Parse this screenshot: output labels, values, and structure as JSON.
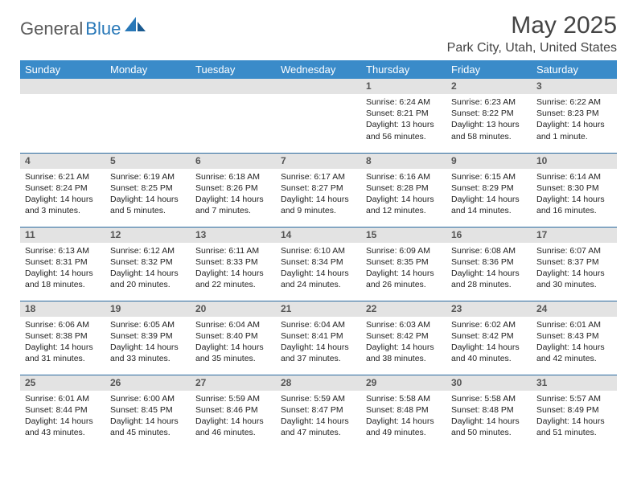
{
  "logo": {
    "textGray": "General",
    "textBlue": "Blue"
  },
  "title": "May 2025",
  "location": "Park City, Utah, United States",
  "colors": {
    "headerBg": "#3a8bc9",
    "rowDivider": "#2a6aa0",
    "dayBarBg": "#e3e3e3",
    "logoGray": "#5a5a5a",
    "logoBlue": "#2878b8"
  },
  "dayHeaders": [
    "Sunday",
    "Monday",
    "Tuesday",
    "Wednesday",
    "Thursday",
    "Friday",
    "Saturday"
  ],
  "weeks": [
    [
      null,
      null,
      null,
      null,
      {
        "num": "1",
        "sunrise": "6:24 AM",
        "sunset": "8:21 PM",
        "daylight": "13 hours and 56 minutes."
      },
      {
        "num": "2",
        "sunrise": "6:23 AM",
        "sunset": "8:22 PM",
        "daylight": "13 hours and 58 minutes."
      },
      {
        "num": "3",
        "sunrise": "6:22 AM",
        "sunset": "8:23 PM",
        "daylight": "14 hours and 1 minute."
      }
    ],
    [
      {
        "num": "4",
        "sunrise": "6:21 AM",
        "sunset": "8:24 PM",
        "daylight": "14 hours and 3 minutes."
      },
      {
        "num": "5",
        "sunrise": "6:19 AM",
        "sunset": "8:25 PM",
        "daylight": "14 hours and 5 minutes."
      },
      {
        "num": "6",
        "sunrise": "6:18 AM",
        "sunset": "8:26 PM",
        "daylight": "14 hours and 7 minutes."
      },
      {
        "num": "7",
        "sunrise": "6:17 AM",
        "sunset": "8:27 PM",
        "daylight": "14 hours and 9 minutes."
      },
      {
        "num": "8",
        "sunrise": "6:16 AM",
        "sunset": "8:28 PM",
        "daylight": "14 hours and 12 minutes."
      },
      {
        "num": "9",
        "sunrise": "6:15 AM",
        "sunset": "8:29 PM",
        "daylight": "14 hours and 14 minutes."
      },
      {
        "num": "10",
        "sunrise": "6:14 AM",
        "sunset": "8:30 PM",
        "daylight": "14 hours and 16 minutes."
      }
    ],
    [
      {
        "num": "11",
        "sunrise": "6:13 AM",
        "sunset": "8:31 PM",
        "daylight": "14 hours and 18 minutes."
      },
      {
        "num": "12",
        "sunrise": "6:12 AM",
        "sunset": "8:32 PM",
        "daylight": "14 hours and 20 minutes."
      },
      {
        "num": "13",
        "sunrise": "6:11 AM",
        "sunset": "8:33 PM",
        "daylight": "14 hours and 22 minutes."
      },
      {
        "num": "14",
        "sunrise": "6:10 AM",
        "sunset": "8:34 PM",
        "daylight": "14 hours and 24 minutes."
      },
      {
        "num": "15",
        "sunrise": "6:09 AM",
        "sunset": "8:35 PM",
        "daylight": "14 hours and 26 minutes."
      },
      {
        "num": "16",
        "sunrise": "6:08 AM",
        "sunset": "8:36 PM",
        "daylight": "14 hours and 28 minutes."
      },
      {
        "num": "17",
        "sunrise": "6:07 AM",
        "sunset": "8:37 PM",
        "daylight": "14 hours and 30 minutes."
      }
    ],
    [
      {
        "num": "18",
        "sunrise": "6:06 AM",
        "sunset": "8:38 PM",
        "daylight": "14 hours and 31 minutes."
      },
      {
        "num": "19",
        "sunrise": "6:05 AM",
        "sunset": "8:39 PM",
        "daylight": "14 hours and 33 minutes."
      },
      {
        "num": "20",
        "sunrise": "6:04 AM",
        "sunset": "8:40 PM",
        "daylight": "14 hours and 35 minutes."
      },
      {
        "num": "21",
        "sunrise": "6:04 AM",
        "sunset": "8:41 PM",
        "daylight": "14 hours and 37 minutes."
      },
      {
        "num": "22",
        "sunrise": "6:03 AM",
        "sunset": "8:42 PM",
        "daylight": "14 hours and 38 minutes."
      },
      {
        "num": "23",
        "sunrise": "6:02 AM",
        "sunset": "8:42 PM",
        "daylight": "14 hours and 40 minutes."
      },
      {
        "num": "24",
        "sunrise": "6:01 AM",
        "sunset": "8:43 PM",
        "daylight": "14 hours and 42 minutes."
      }
    ],
    [
      {
        "num": "25",
        "sunrise": "6:01 AM",
        "sunset": "8:44 PM",
        "daylight": "14 hours and 43 minutes."
      },
      {
        "num": "26",
        "sunrise": "6:00 AM",
        "sunset": "8:45 PM",
        "daylight": "14 hours and 45 minutes."
      },
      {
        "num": "27",
        "sunrise": "5:59 AM",
        "sunset": "8:46 PM",
        "daylight": "14 hours and 46 minutes."
      },
      {
        "num": "28",
        "sunrise": "5:59 AM",
        "sunset": "8:47 PM",
        "daylight": "14 hours and 47 minutes."
      },
      {
        "num": "29",
        "sunrise": "5:58 AM",
        "sunset": "8:48 PM",
        "daylight": "14 hours and 49 minutes."
      },
      {
        "num": "30",
        "sunrise": "5:58 AM",
        "sunset": "8:48 PM",
        "daylight": "14 hours and 50 minutes."
      },
      {
        "num": "31",
        "sunrise": "5:57 AM",
        "sunset": "8:49 PM",
        "daylight": "14 hours and 51 minutes."
      }
    ]
  ]
}
